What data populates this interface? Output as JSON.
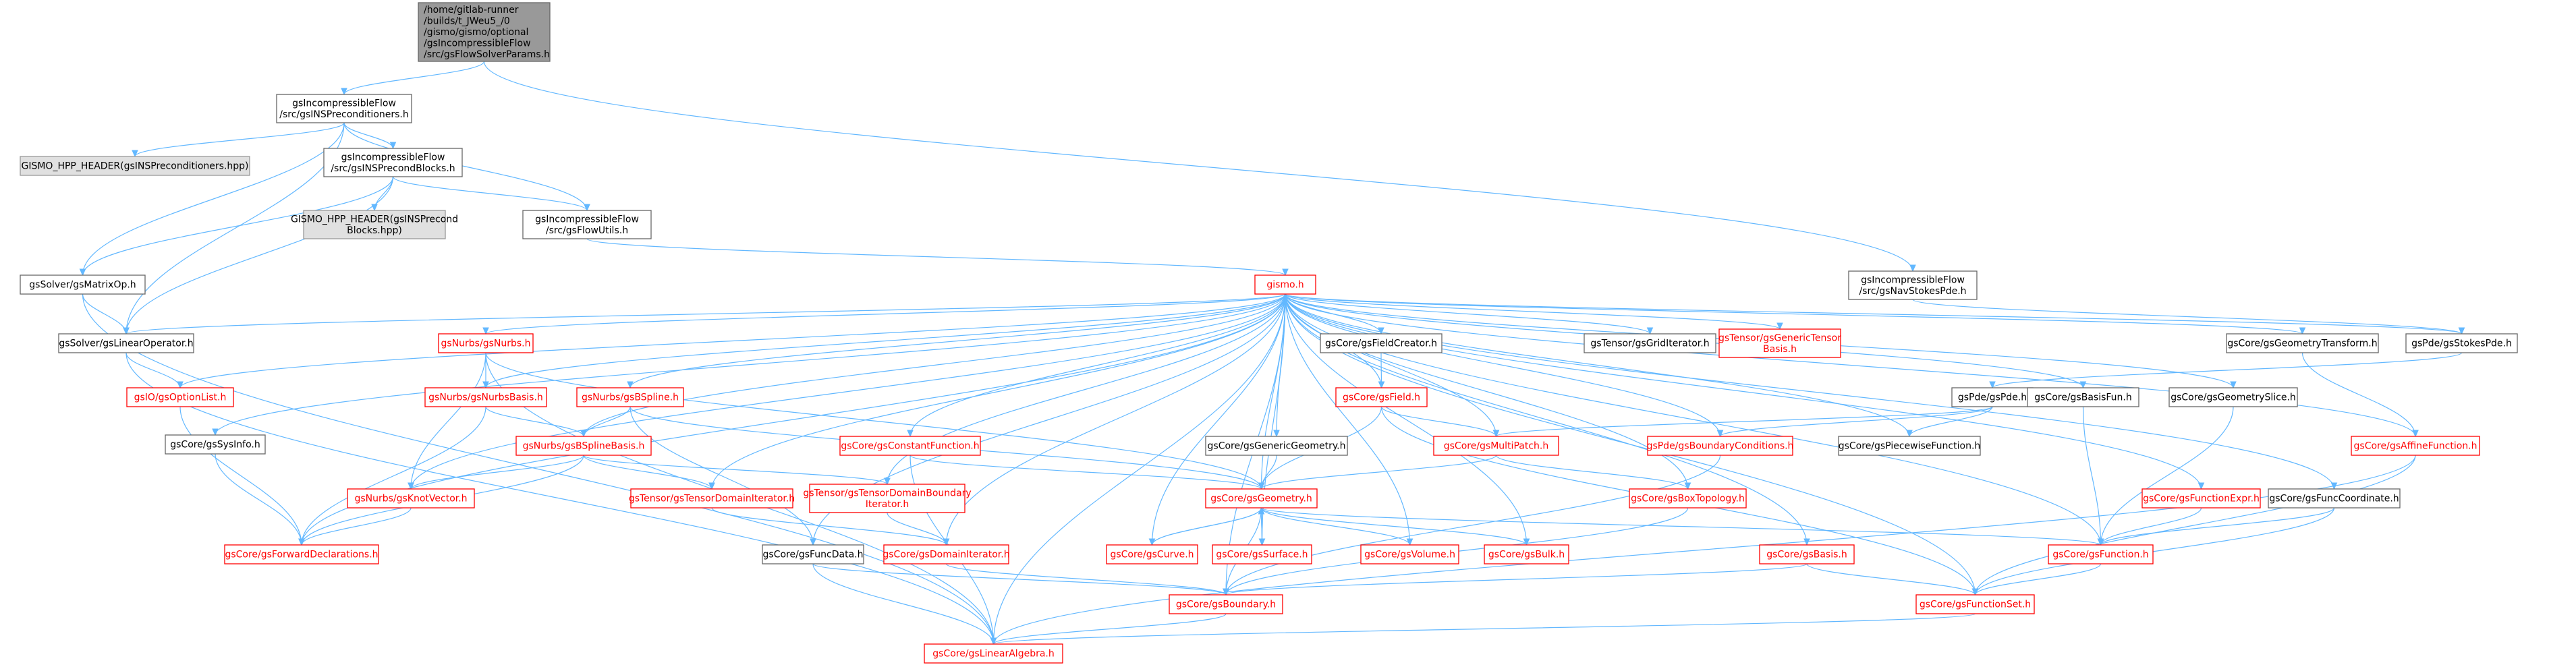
{
  "colors": {
    "edge": "#63B8FF",
    "root_fill": "#999999",
    "root_border": "#666666",
    "plain_border": "#666666",
    "red_border": "#FF0000",
    "text_black": "#000000",
    "text_red": "#FF0000",
    "gray_fill": "#E0E0E0",
    "gray_border": "#999999"
  },
  "nodes": [
    {
      "id": "root",
      "lines": [
        "/home/gitlab-runner",
        "/builds/t_JWeu5_/0",
        "/gismo/gismo/optional",
        "/gsIncompressibleFlow",
        "/src/gsFlowSolverParams.h"
      ],
      "style": "root"
    },
    {
      "id": "nsprec",
      "lines": [
        "gsIncompressibleFlow",
        "/src/gsINSPreconditioners.h"
      ],
      "style": "plain"
    },
    {
      "id": "hdr1",
      "lines": [
        "GISMO_HPP_HEADER(gsINSPreconditioners.hpp)"
      ],
      "style": "gray"
    },
    {
      "id": "nsprecblk",
      "lines": [
        "gsIncompressibleFlow",
        "/src/gsINSPrecondBlocks.h"
      ],
      "style": "plain"
    },
    {
      "id": "hdr2",
      "lines": [
        "GISMO_HPP_HEADER(gsINSPrecond",
        "Blocks.hpp)"
      ],
      "style": "gray"
    },
    {
      "id": "flowutils",
      "lines": [
        "gsIncompressibleFlow",
        "/src/gsFlowUtils.h"
      ],
      "style": "plain"
    },
    {
      "id": "navstokes",
      "lines": [
        "gsIncompressibleFlow",
        "/src/gsNavStokesPde.h"
      ],
      "style": "plain"
    },
    {
      "id": "matrixop",
      "lines": [
        "gsSolver/gsMatrixOp.h"
      ],
      "style": "plain"
    },
    {
      "id": "linop",
      "lines": [
        "gsSolver/gsLinearOperator.h"
      ],
      "style": "plain"
    },
    {
      "id": "gismo",
      "lines": [
        "gismo.h"
      ],
      "style": "red"
    },
    {
      "id": "nurbs",
      "lines": [
        "gsNurbs/gsNurbs.h"
      ],
      "style": "red"
    },
    {
      "id": "fieldcreator",
      "lines": [
        "gsCore/gsFieldCreator.h"
      ],
      "style": "plain"
    },
    {
      "id": "griditer",
      "lines": [
        "gsTensor/gsGridIterator.h"
      ],
      "style": "plain"
    },
    {
      "id": "generictensor",
      "lines": [
        "gsTensor/gsGenericTensor",
        "Basis.h"
      ],
      "style": "red"
    },
    {
      "id": "geotransform",
      "lines": [
        "gsCore/gsGeometryTransform.h"
      ],
      "style": "plain"
    },
    {
      "id": "stokespde",
      "lines": [
        "gsPde/gsStokesPde.h"
      ],
      "style": "plain"
    },
    {
      "id": "optionlist",
      "lines": [
        "gsIO/gsOptionList.h"
      ],
      "style": "red"
    },
    {
      "id": "nurbsbasis",
      "lines": [
        "gsNurbs/gsNurbsBasis.h"
      ],
      "style": "red"
    },
    {
      "id": "bspline",
      "lines": [
        "gsNurbs/gsBSpline.h"
      ],
      "style": "red"
    },
    {
      "id": "field",
      "lines": [
        "gsCore/gsField.h"
      ],
      "style": "red"
    },
    {
      "id": "pde",
      "lines": [
        "gsPde/gsPde.h"
      ],
      "style": "plain"
    },
    {
      "id": "basisfun",
      "lines": [
        "gsCore/gsBasisFun.h"
      ],
      "style": "plain"
    },
    {
      "id": "geoslice",
      "lines": [
        "gsCore/gsGeometrySlice.h"
      ],
      "style": "plain"
    },
    {
      "id": "affine",
      "lines": [
        "gsCore/gsAffineFunction.h"
      ],
      "style": "red"
    },
    {
      "id": "sysinfo",
      "lines": [
        "gsCore/gsSysInfo.h"
      ],
      "style": "plain"
    },
    {
      "id": "bsplinebasis",
      "lines": [
        "gsNurbs/gsBSplineBasis.h"
      ],
      "style": "red"
    },
    {
      "id": "constfunc",
      "lines": [
        "gsCore/gsConstantFunction.h"
      ],
      "style": "red"
    },
    {
      "id": "genericgeo",
      "lines": [
        "gsCore/gsGenericGeometry.h"
      ],
      "style": "plain"
    },
    {
      "id": "multipatch",
      "lines": [
        "gsCore/gsMultiPatch.h"
      ],
      "style": "red"
    },
    {
      "id": "bc",
      "lines": [
        "gsPde/gsBoundaryConditions.h"
      ],
      "style": "red"
    },
    {
      "id": "piecewise",
      "lines": [
        "gsCore/gsPiecewiseFunction.h"
      ],
      "style": "plain"
    },
    {
      "id": "knotvector",
      "lines": [
        "gsNurbs/gsKnotVector.h"
      ],
      "style": "red"
    },
    {
      "id": "tensordomiter",
      "lines": [
        "gsTensor/gsTensorDomainIterator.h"
      ],
      "style": "red"
    },
    {
      "id": "tensordombound",
      "lines": [
        "gsTensor/gsTensorDomainBoundary",
        "Iterator.h"
      ],
      "style": "red"
    },
    {
      "id": "geometry",
      "lines": [
        "gsCore/gsGeometry.h"
      ],
      "style": "red"
    },
    {
      "id": "boxtopo",
      "lines": [
        "gsCore/gsBoxTopology.h"
      ],
      "style": "red"
    },
    {
      "id": "funcexpr",
      "lines": [
        "gsCore/gsFunctionExpr.h"
      ],
      "style": "red"
    },
    {
      "id": "funccoord",
      "lines": [
        "gsCore/gsFuncCoordinate.h"
      ],
      "style": "plain"
    },
    {
      "id": "fwddecl",
      "lines": [
        "gsCore/gsForwardDeclarations.h"
      ],
      "style": "red"
    },
    {
      "id": "funcdata",
      "lines": [
        "gsCore/gsFuncData.h"
      ],
      "style": "plain"
    },
    {
      "id": "domiter",
      "lines": [
        "gsCore/gsDomainIterator.h"
      ],
      "style": "red"
    },
    {
      "id": "curve",
      "lines": [
        "gsCore/gsCurve.h"
      ],
      "style": "red"
    },
    {
      "id": "surface",
      "lines": [
        "gsCore/gsSurface.h"
      ],
      "style": "red"
    },
    {
      "id": "volume",
      "lines": [
        "gsCore/gsVolume.h"
      ],
      "style": "red"
    },
    {
      "id": "bulk",
      "lines": [
        "gsCore/gsBulk.h"
      ],
      "style": "red"
    },
    {
      "id": "basis",
      "lines": [
        "gsCore/gsBasis.h"
      ],
      "style": "red"
    },
    {
      "id": "function",
      "lines": [
        "gsCore/gsFunction.h"
      ],
      "style": "red"
    },
    {
      "id": "boundary",
      "lines": [
        "gsCore/gsBoundary.h"
      ],
      "style": "red"
    },
    {
      "id": "funcset",
      "lines": [
        "gsCore/gsFunctionSet.h"
      ],
      "style": "red"
    },
    {
      "id": "linalg",
      "lines": [
        "gsCore/gsLinearAlgebra.h"
      ],
      "style": "red"
    }
  ],
  "edges": [
    [
      "root",
      "nsprec"
    ],
    [
      "root",
      "navstokes"
    ],
    [
      "nsprec",
      "hdr1"
    ],
    [
      "nsprec",
      "nsprecblk"
    ],
    [
      "nsprec",
      "flowutils"
    ],
    [
      "nsprec",
      "matrixop"
    ],
    [
      "nsprec",
      "linop"
    ],
    [
      "nsprecblk",
      "hdr2"
    ],
    [
      "nsprecblk",
      "flowutils"
    ],
    [
      "nsprecblk",
      "matrixop"
    ],
    [
      "nsprecblk",
      "linop"
    ],
    [
      "flowutils",
      "gismo"
    ],
    [
      "navstokes",
      "stokespde"
    ],
    [
      "matrixop",
      "linop"
    ],
    [
      "matrixop",
      "linalg"
    ],
    [
      "linop",
      "optionlist"
    ],
    [
      "linop",
      "linalg"
    ],
    [
      "gismo",
      "linop"
    ],
    [
      "gismo",
      "nurbs"
    ],
    [
      "gismo",
      "fieldcreator"
    ],
    [
      "gismo",
      "griditer"
    ],
    [
      "gismo",
      "generictensor"
    ],
    [
      "gismo",
      "geotransform"
    ],
    [
      "gismo",
      "stokespde"
    ],
    [
      "gismo",
      "optionlist"
    ],
    [
      "gismo",
      "nurbsbasis"
    ],
    [
      "gismo",
      "bspline"
    ],
    [
      "gismo",
      "field"
    ],
    [
      "gismo",
      "basisfun"
    ],
    [
      "gismo",
      "geoslice"
    ],
    [
      "gismo",
      "sysinfo"
    ],
    [
      "gismo",
      "bsplinebasis"
    ],
    [
      "gismo",
      "constfunc"
    ],
    [
      "gismo",
      "genericgeo"
    ],
    [
      "gismo",
      "multipatch"
    ],
    [
      "gismo",
      "bc"
    ],
    [
      "gismo",
      "piecewise"
    ],
    [
      "gismo",
      "knotvector"
    ],
    [
      "gismo",
      "tensordomiter"
    ],
    [
      "gismo",
      "tensordombound"
    ],
    [
      "gismo",
      "geometry"
    ],
    [
      "gismo",
      "boxtopo"
    ],
    [
      "gismo",
      "funcexpr"
    ],
    [
      "gismo",
      "funccoord"
    ],
    [
      "gismo",
      "fwddecl"
    ],
    [
      "gismo",
      "funcdata"
    ],
    [
      "gismo",
      "domiter"
    ],
    [
      "gismo",
      "curve"
    ],
    [
      "gismo",
      "surface"
    ],
    [
      "gismo",
      "volume"
    ],
    [
      "gismo",
      "bulk"
    ],
    [
      "gismo",
      "basis"
    ],
    [
      "gismo",
      "function"
    ],
    [
      "gismo",
      "boundary"
    ],
    [
      "gismo",
      "linalg"
    ],
    [
      "gismo",
      "affine"
    ],
    [
      "gismo",
      "funcset"
    ],
    [
      "nurbs",
      "nurbsbasis"
    ],
    [
      "nurbs",
      "geometry"
    ],
    [
      "nurbs",
      "knotvector"
    ],
    [
      "nurbs",
      "linalg"
    ],
    [
      "fieldcreator",
      "field"
    ],
    [
      "geotransform",
      "affine"
    ],
    [
      "stokespde",
      "pde"
    ],
    [
      "optionlist",
      "fwddecl"
    ],
    [
      "nurbsbasis",
      "bsplinebasis"
    ],
    [
      "nurbsbasis",
      "fwddecl"
    ],
    [
      "bspline",
      "bsplinebasis"
    ],
    [
      "bspline",
      "geometry"
    ],
    [
      "bspline",
      "funcdata"
    ],
    [
      "field",
      "multipatch"
    ],
    [
      "field",
      "geometry"
    ],
    [
      "field",
      "funcset"
    ],
    [
      "pde",
      "multipatch"
    ],
    [
      "pde",
      "bc"
    ],
    [
      "pde",
      "piecewise"
    ],
    [
      "basisfun",
      "function"
    ],
    [
      "geoslice",
      "function"
    ],
    [
      "affine",
      "funcset"
    ],
    [
      "affine",
      "linalg"
    ],
    [
      "sysinfo",
      "fwddecl"
    ],
    [
      "bsplinebasis",
      "knotvector"
    ],
    [
      "bsplinebasis",
      "tensordomiter"
    ],
    [
      "bsplinebasis",
      "tensordombound"
    ],
    [
      "bsplinebasis",
      "fwddecl"
    ],
    [
      "constfunc",
      "geometry"
    ],
    [
      "constfunc",
      "linalg"
    ],
    [
      "genericgeo",
      "geometry"
    ],
    [
      "multipatch",
      "geometry"
    ],
    [
      "multipatch",
      "boxtopo"
    ],
    [
      "bc",
      "boundary"
    ],
    [
      "knotvector",
      "fwddecl"
    ],
    [
      "tensordomiter",
      "domiter"
    ],
    [
      "tensordombound",
      "domiter"
    ],
    [
      "geometry",
      "curve"
    ],
    [
      "geometry",
      "surface"
    ],
    [
      "geometry",
      "volume"
    ],
    [
      "geometry",
      "bulk"
    ],
    [
      "geometry",
      "function"
    ],
    [
      "geometry",
      "boundary"
    ],
    [
      "curve",
      "geometry"
    ],
    [
      "surface",
      "geometry"
    ],
    [
      "boxtopo",
      "boundary"
    ],
    [
      "funcexpr",
      "function"
    ],
    [
      "funccoord",
      "function"
    ],
    [
      "funccoord",
      "funcset"
    ],
    [
      "funcdata",
      "boundary"
    ],
    [
      "funcdata",
      "linalg"
    ],
    [
      "domiter",
      "boundary"
    ],
    [
      "basis",
      "boundary"
    ],
    [
      "basis",
      "funcset"
    ],
    [
      "function",
      "funcset"
    ],
    [
      "boundary",
      "linalg"
    ],
    [
      "funcset",
      "linalg"
    ]
  ]
}
